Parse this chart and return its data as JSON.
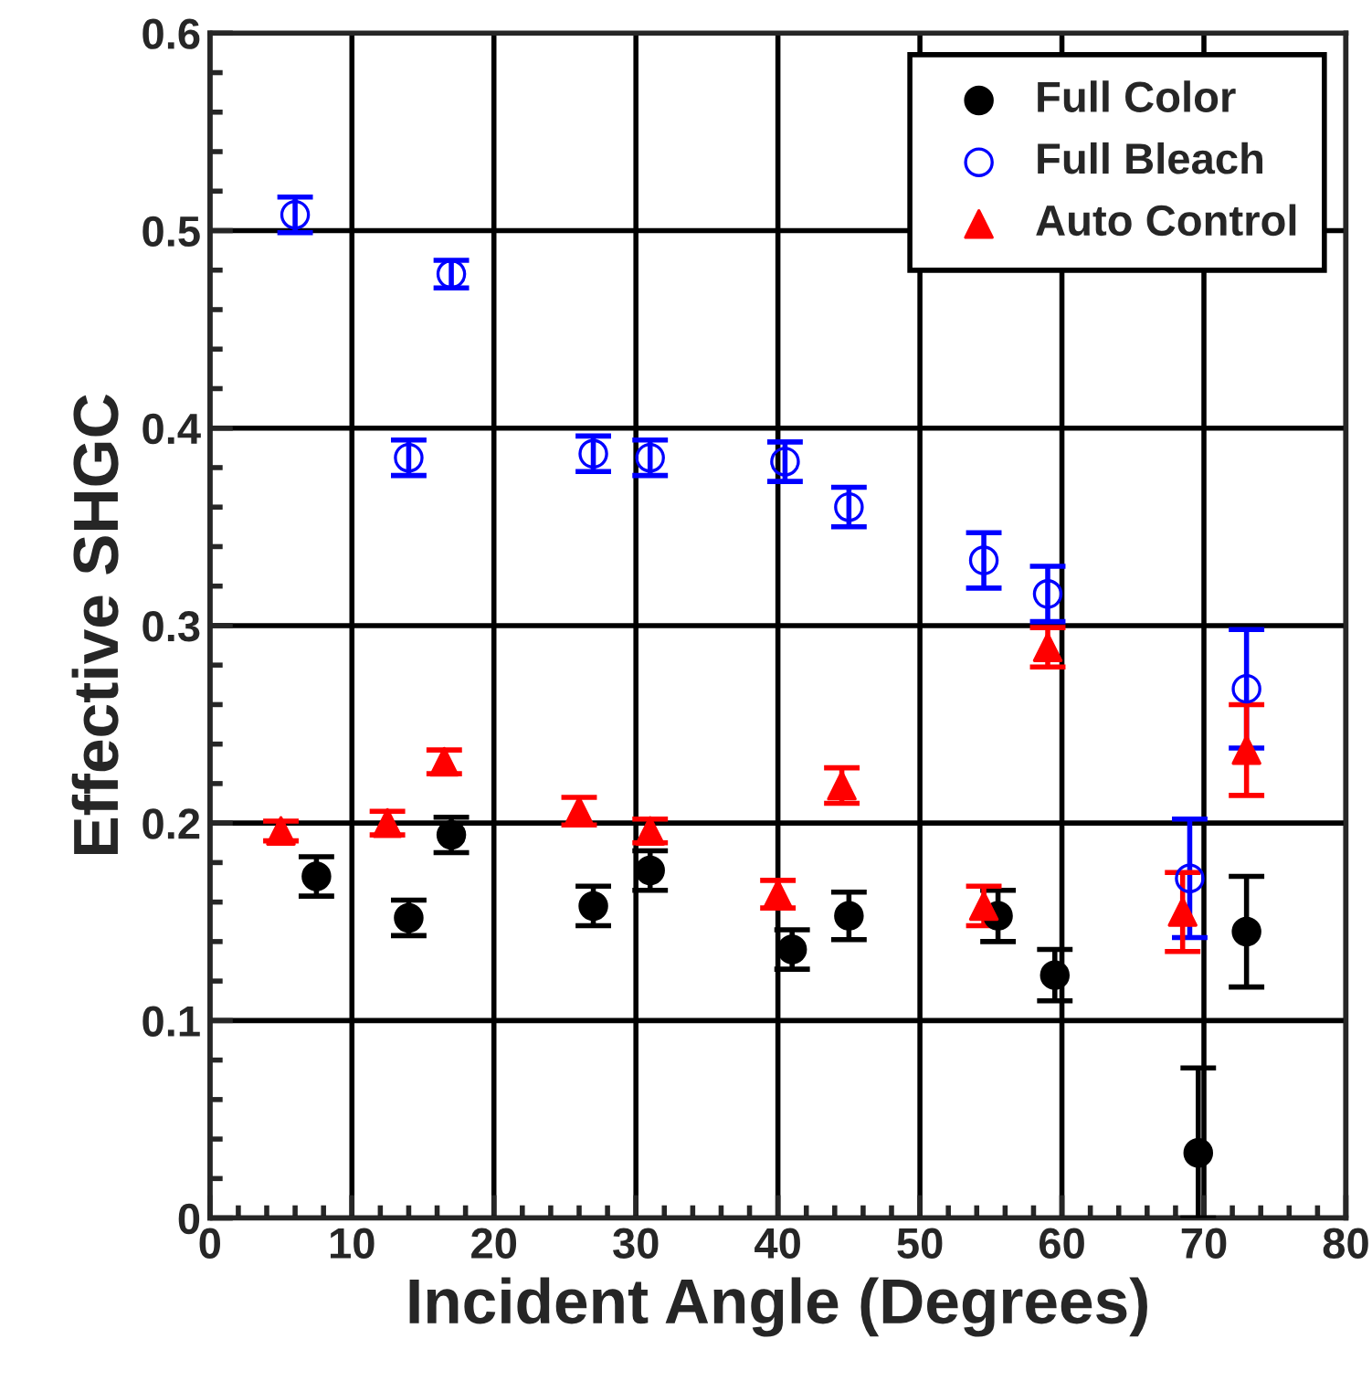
{
  "chart_data": {
    "type": "scatter",
    "xlabel": "Incident Angle (Degrees)",
    "ylabel": "Effective SHGC",
    "xlim": [
      0,
      80
    ],
    "xticks": [
      0,
      10,
      20,
      30,
      40,
      50,
      60,
      70,
      80
    ],
    "ylim": [
      0,
      0.6
    ],
    "yticks": [
      {
        "value": 0,
        "label": "0"
      },
      0.1,
      0.2,
      0.3,
      0.4,
      0.5,
      0.6
    ],
    "grid": true,
    "legend": "top right",
    "series": [
      {
        "name": "Full Color",
        "color": "#000000",
        "marker": "circle",
        "x": [
          7.5,
          14,
          17,
          27,
          31,
          41,
          45,
          55.5,
          59.5,
          69.6,
          73
        ],
        "values": [
          0.173,
          0.152,
          0.194,
          0.158,
          0.176,
          0.136,
          0.153,
          0.153,
          0.123,
          0.033,
          0.145
        ],
        "errors": [
          0.01,
          0.009,
          0.009,
          0.01,
          0.01,
          0.01,
          0.012,
          0.013,
          0.013,
          [
            0,
            0.076
          ],
          0.028
        ]
      },
      {
        "name": "Full Bleach",
        "color": "#0000ff",
        "marker": "circle_open",
        "x": [
          6,
          14,
          17,
          27,
          31,
          40.5,
          45,
          54.5,
          59,
          69,
          73
        ],
        "values": [
          0.508,
          0.385,
          0.478,
          0.387,
          0.385,
          0.383,
          0.36,
          0.333,
          0.316,
          0.172,
          0.268
        ],
        "errors": [
          0.009,
          0.009,
          0.007,
          0.009,
          0.009,
          0.01,
          0.01,
          0.014,
          0.014,
          0.03,
          0.03
        ]
      },
      {
        "name": "Auto Control",
        "color": "#ff0000",
        "marker": "triangle",
        "x": [
          5,
          12.5,
          16.5,
          26,
          31,
          40,
          44.5,
          54.5,
          59,
          68.5,
          73
        ],
        "values": [
          0.196,
          0.2,
          0.231,
          0.206,
          0.196,
          0.164,
          0.219,
          0.158,
          0.289,
          0.155,
          0.237
        ],
        "errors": [
          0.005,
          0.006,
          0.006,
          0.007,
          0.006,
          0.007,
          0.009,
          0.01,
          0.01,
          0.02,
          0.023
        ]
      }
    ]
  }
}
